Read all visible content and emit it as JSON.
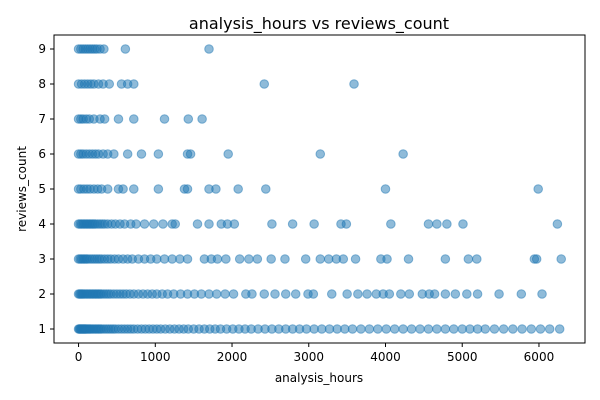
{
  "chart_data": {
    "type": "scatter",
    "title": "analysis_hours vs reviews_count",
    "xlabel": "analysis_hours",
    "ylabel": "reviews_count",
    "xlim": [
      -320,
      6600
    ],
    "ylim": [
      0.6,
      9.4
    ],
    "xticks": [
      0,
      1000,
      2000,
      3000,
      4000,
      5000,
      6000
    ],
    "yticks": [
      1,
      2,
      3,
      4,
      5,
      6,
      7,
      8,
      9
    ],
    "grid": false,
    "legend": "none",
    "marker_color": "#1f77b4",
    "marker_alpha": 0.5,
    "series": [
      {
        "points": [
          [
            0,
            9
          ],
          [
            30,
            9
          ],
          [
            60,
            9
          ],
          [
            90,
            9
          ],
          [
            120,
            9
          ],
          [
            150,
            9
          ],
          [
            180,
            9
          ],
          [
            210,
            9
          ],
          [
            240,
            9
          ],
          [
            280,
            9
          ],
          [
            330,
            9
          ],
          [
            610,
            9
          ],
          [
            1700,
            9
          ],
          [
            0,
            8
          ],
          [
            40,
            8
          ],
          [
            80,
            8
          ],
          [
            120,
            8
          ],
          [
            160,
            8
          ],
          [
            200,
            8
          ],
          [
            260,
            8
          ],
          [
            320,
            8
          ],
          [
            400,
            8
          ],
          [
            560,
            8
          ],
          [
            640,
            8
          ],
          [
            720,
            8
          ],
          [
            2420,
            8
          ],
          [
            3590,
            8
          ],
          [
            0,
            7
          ],
          [
            30,
            7
          ],
          [
            60,
            7
          ],
          [
            100,
            7
          ],
          [
            140,
            7
          ],
          [
            200,
            7
          ],
          [
            280,
            7
          ],
          [
            340,
            7
          ],
          [
            520,
            7
          ],
          [
            720,
            7
          ],
          [
            1120,
            7
          ],
          [
            1430,
            7
          ],
          [
            1610,
            7
          ],
          [
            0,
            6
          ],
          [
            30,
            6
          ],
          [
            60,
            6
          ],
          [
            100,
            6
          ],
          [
            140,
            6
          ],
          [
            180,
            6
          ],
          [
            220,
            6
          ],
          [
            260,
            6
          ],
          [
            320,
            6
          ],
          [
            380,
            6
          ],
          [
            460,
            6
          ],
          [
            640,
            6
          ],
          [
            820,
            6
          ],
          [
            1040,
            6
          ],
          [
            1420,
            6
          ],
          [
            1460,
            6
          ],
          [
            1950,
            6
          ],
          [
            3150,
            6
          ],
          [
            4230,
            6
          ],
          [
            0,
            5
          ],
          [
            30,
            5
          ],
          [
            70,
            5
          ],
          [
            110,
            5
          ],
          [
            150,
            5
          ],
          [
            200,
            5
          ],
          [
            250,
            5
          ],
          [
            300,
            5
          ],
          [
            380,
            5
          ],
          [
            520,
            5
          ],
          [
            580,
            5
          ],
          [
            720,
            5
          ],
          [
            1040,
            5
          ],
          [
            1380,
            5
          ],
          [
            1420,
            5
          ],
          [
            1700,
            5
          ],
          [
            1790,
            5
          ],
          [
            2080,
            5
          ],
          [
            2440,
            5
          ],
          [
            4000,
            5
          ],
          [
            5990,
            5
          ],
          [
            0,
            4
          ],
          [
            20,
            4
          ],
          [
            40,
            4
          ],
          [
            60,
            4
          ],
          [
            80,
            4
          ],
          [
            100,
            4
          ],
          [
            120,
            4
          ],
          [
            140,
            4
          ],
          [
            160,
            4
          ],
          [
            180,
            4
          ],
          [
            200,
            4
          ],
          [
            220,
            4
          ],
          [
            250,
            4
          ],
          [
            280,
            4
          ],
          [
            310,
            4
          ],
          [
            340,
            4
          ],
          [
            380,
            4
          ],
          [
            430,
            4
          ],
          [
            480,
            4
          ],
          [
            540,
            4
          ],
          [
            600,
            4
          ],
          [
            680,
            4
          ],
          [
            750,
            4
          ],
          [
            860,
            4
          ],
          [
            980,
            4
          ],
          [
            1100,
            4
          ],
          [
            1220,
            4
          ],
          [
            1260,
            4
          ],
          [
            1550,
            4
          ],
          [
            1700,
            4
          ],
          [
            1860,
            4
          ],
          [
            1940,
            4
          ],
          [
            2030,
            4
          ],
          [
            2520,
            4
          ],
          [
            2790,
            4
          ],
          [
            3070,
            4
          ],
          [
            3420,
            4
          ],
          [
            3490,
            4
          ],
          [
            4070,
            4
          ],
          [
            4560,
            4
          ],
          [
            4670,
            4
          ],
          [
            4800,
            4
          ],
          [
            5010,
            4
          ],
          [
            6240,
            4
          ],
          [
            0,
            3
          ],
          [
            20,
            3
          ],
          [
            40,
            3
          ],
          [
            60,
            3
          ],
          [
            80,
            3
          ],
          [
            100,
            3
          ],
          [
            120,
            3
          ],
          [
            150,
            3
          ],
          [
            180,
            3
          ],
          [
            210,
            3
          ],
          [
            240,
            3
          ],
          [
            270,
            3
          ],
          [
            300,
            3
          ],
          [
            340,
            3
          ],
          [
            380,
            3
          ],
          [
            420,
            3
          ],
          [
            470,
            3
          ],
          [
            520,
            3
          ],
          [
            580,
            3
          ],
          [
            640,
            3
          ],
          [
            700,
            3
          ],
          [
            780,
            3
          ],
          [
            860,
            3
          ],
          [
            940,
            3
          ],
          [
            1020,
            3
          ],
          [
            1120,
            3
          ],
          [
            1220,
            3
          ],
          [
            1320,
            3
          ],
          [
            1420,
            3
          ],
          [
            1640,
            3
          ],
          [
            1730,
            3
          ],
          [
            1810,
            3
          ],
          [
            1920,
            3
          ],
          [
            2100,
            3
          ],
          [
            2220,
            3
          ],
          [
            2330,
            3
          ],
          [
            2510,
            3
          ],
          [
            2690,
            3
          ],
          [
            2960,
            3
          ],
          [
            3150,
            3
          ],
          [
            3260,
            3
          ],
          [
            3360,
            3
          ],
          [
            3450,
            3
          ],
          [
            3610,
            3
          ],
          [
            3940,
            3
          ],
          [
            4020,
            3
          ],
          [
            4300,
            3
          ],
          [
            4780,
            3
          ],
          [
            5080,
            3
          ],
          [
            5190,
            3
          ],
          [
            5940,
            3
          ],
          [
            5970,
            3
          ],
          [
            6290,
            3
          ],
          [
            0,
            2
          ],
          [
            15,
            2
          ],
          [
            30,
            2
          ],
          [
            45,
            2
          ],
          [
            60,
            2
          ],
          [
            80,
            2
          ],
          [
            100,
            2
          ],
          [
            120,
            2
          ],
          [
            140,
            2
          ],
          [
            160,
            2
          ],
          [
            180,
            2
          ],
          [
            200,
            2
          ],
          [
            220,
            2
          ],
          [
            240,
            2
          ],
          [
            260,
            2
          ],
          [
            280,
            2
          ],
          [
            300,
            2
          ],
          [
            330,
            2
          ],
          [
            360,
            2
          ],
          [
            390,
            2
          ],
          [
            420,
            2
          ],
          [
            460,
            2
          ],
          [
            500,
            2
          ],
          [
            540,
            2
          ],
          [
            580,
            2
          ],
          [
            620,
            2
          ],
          [
            670,
            2
          ],
          [
            720,
            2
          ],
          [
            780,
            2
          ],
          [
            840,
            2
          ],
          [
            900,
            2
          ],
          [
            960,
            2
          ],
          [
            1020,
            2
          ],
          [
            1090,
            2
          ],
          [
            1160,
            2
          ],
          [
            1240,
            2
          ],
          [
            1330,
            2
          ],
          [
            1420,
            2
          ],
          [
            1510,
            2
          ],
          [
            1600,
            2
          ],
          [
            1700,
            2
          ],
          [
            1800,
            2
          ],
          [
            1910,
            2
          ],
          [
            2020,
            2
          ],
          [
            2180,
            2
          ],
          [
            2260,
            2
          ],
          [
            2420,
            2
          ],
          [
            2560,
            2
          ],
          [
            2700,
            2
          ],
          [
            2830,
            2
          ],
          [
            2990,
            2
          ],
          [
            3060,
            2
          ],
          [
            3300,
            2
          ],
          [
            3500,
            2
          ],
          [
            3640,
            2
          ],
          [
            3760,
            2
          ],
          [
            3880,
            2
          ],
          [
            3970,
            2
          ],
          [
            4050,
            2
          ],
          [
            4200,
            2
          ],
          [
            4310,
            2
          ],
          [
            4480,
            2
          ],
          [
            4570,
            2
          ],
          [
            4640,
            2
          ],
          [
            4780,
            2
          ],
          [
            4910,
            2
          ],
          [
            5060,
            2
          ],
          [
            5200,
            2
          ],
          [
            5480,
            2
          ],
          [
            5770,
            2
          ],
          [
            6040,
            2
          ],
          [
            0,
            1
          ],
          [
            10,
            1
          ],
          [
            20,
            1
          ],
          [
            30,
            1
          ],
          [
            40,
            1
          ],
          [
            50,
            1
          ],
          [
            60,
            1
          ],
          [
            70,
            1
          ],
          [
            80,
            1
          ],
          [
            90,
            1
          ],
          [
            100,
            1
          ],
          [
            115,
            1
          ],
          [
            130,
            1
          ],
          [
            145,
            1
          ],
          [
            160,
            1
          ],
          [
            180,
            1
          ],
          [
            200,
            1
          ],
          [
            220,
            1
          ],
          [
            240,
            1
          ],
          [
            260,
            1
          ],
          [
            280,
            1
          ],
          [
            300,
            1
          ],
          [
            330,
            1
          ],
          [
            360,
            1
          ],
          [
            390,
            1
          ],
          [
            420,
            1
          ],
          [
            450,
            1
          ],
          [
            480,
            1
          ],
          [
            520,
            1
          ],
          [
            560,
            1
          ],
          [
            600,
            1
          ],
          [
            640,
            1
          ],
          [
            680,
            1
          ],
          [
            720,
            1
          ],
          [
            770,
            1
          ],
          [
            820,
            1
          ],
          [
            870,
            1
          ],
          [
            920,
            1
          ],
          [
            970,
            1
          ],
          [
            1020,
            1
          ],
          [
            1070,
            1
          ],
          [
            1130,
            1
          ],
          [
            1190,
            1
          ],
          [
            1250,
            1
          ],
          [
            1310,
            1
          ],
          [
            1370,
            1
          ],
          [
            1430,
            1
          ],
          [
            1500,
            1
          ],
          [
            1570,
            1
          ],
          [
            1640,
            1
          ],
          [
            1710,
            1
          ],
          [
            1780,
            1
          ],
          [
            1850,
            1
          ],
          [
            1930,
            1
          ],
          [
            2010,
            1
          ],
          [
            2090,
            1
          ],
          [
            2170,
            1
          ],
          [
            2250,
            1
          ],
          [
            2340,
            1
          ],
          [
            2430,
            1
          ],
          [
            2520,
            1
          ],
          [
            2610,
            1
          ],
          [
            2700,
            1
          ],
          [
            2790,
            1
          ],
          [
            2880,
            1
          ],
          [
            2970,
            1
          ],
          [
            3070,
            1
          ],
          [
            3170,
            1
          ],
          [
            3270,
            1
          ],
          [
            3370,
            1
          ],
          [
            3470,
            1
          ],
          [
            3570,
            1
          ],
          [
            3680,
            1
          ],
          [
            3790,
            1
          ],
          [
            3900,
            1
          ],
          [
            4010,
            1
          ],
          [
            4120,
            1
          ],
          [
            4230,
            1
          ],
          [
            4340,
            1
          ],
          [
            4450,
            1
          ],
          [
            4560,
            1
          ],
          [
            4670,
            1
          ],
          [
            4780,
            1
          ],
          [
            4890,
            1
          ],
          [
            5000,
            1
          ],
          [
            5100,
            1
          ],
          [
            5200,
            1
          ],
          [
            5300,
            1
          ],
          [
            5420,
            1
          ],
          [
            5540,
            1
          ],
          [
            5660,
            1
          ],
          [
            5780,
            1
          ],
          [
            5900,
            1
          ],
          [
            6020,
            1
          ],
          [
            6140,
            1
          ],
          [
            6270,
            1
          ]
        ]
      }
    ]
  }
}
